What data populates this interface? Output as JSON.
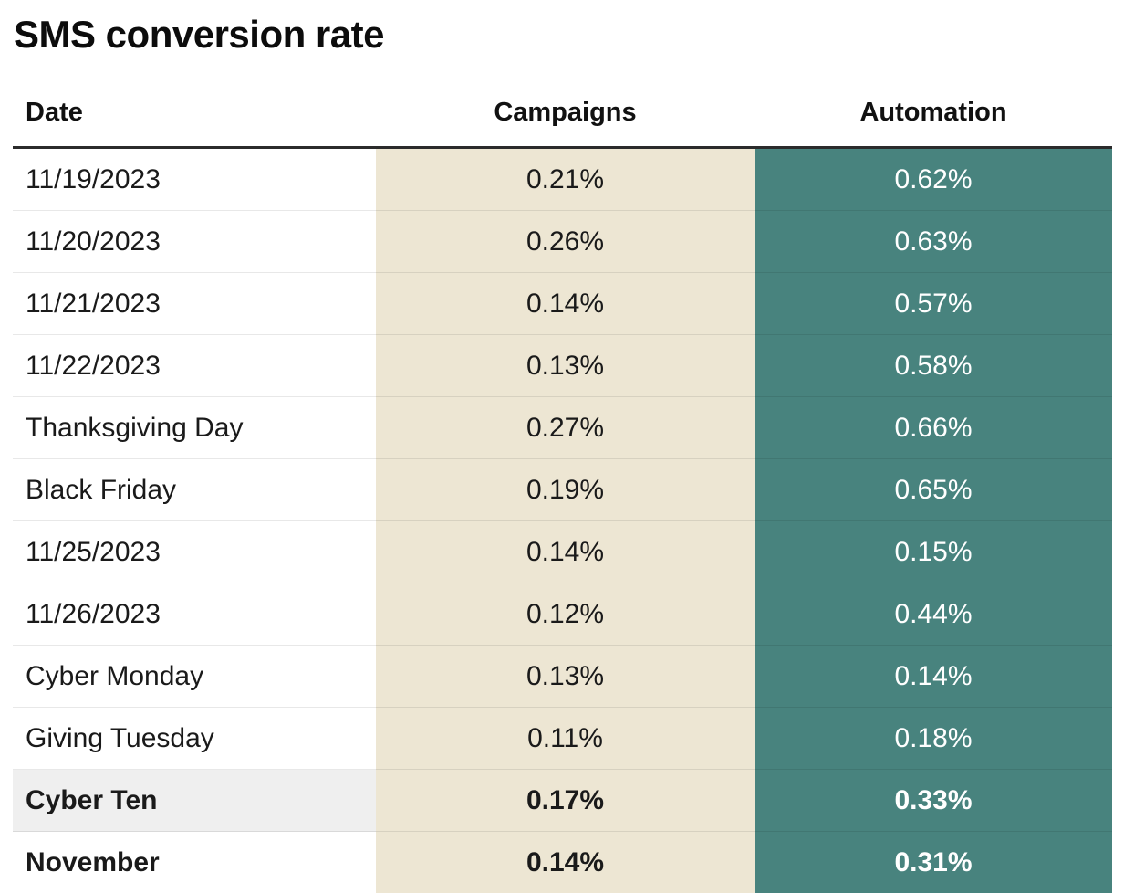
{
  "title": "SMS conversion rate",
  "colors": {
    "campaigns_bg": "#EDE6D3",
    "automation_bg": "#48837E",
    "automation_text": "#FFFFFF",
    "highlight_bg": "#EFEFEF",
    "header_rule": "#2B2B2B",
    "body_text": "#1B1B1B"
  },
  "table": {
    "columns": [
      "Date",
      "Campaigns",
      "Automation"
    ],
    "rows": [
      {
        "date": "11/19/2023",
        "campaigns": "0.21%",
        "automation": "0.62%"
      },
      {
        "date": "11/20/2023",
        "campaigns": "0.26%",
        "automation": "0.63%"
      },
      {
        "date": "11/21/2023",
        "campaigns": "0.14%",
        "automation": "0.57%"
      },
      {
        "date": "11/22/2023",
        "campaigns": "0.13%",
        "automation": "0.58%"
      },
      {
        "date": "Thanksgiving Day",
        "campaigns": "0.27%",
        "automation": "0.66%"
      },
      {
        "date": "Black Friday",
        "campaigns": "0.19%",
        "automation": "0.65%"
      },
      {
        "date": "11/25/2023",
        "campaigns": "0.14%",
        "automation": "0.15%"
      },
      {
        "date": "11/26/2023",
        "campaigns": "0.12%",
        "automation": "0.44%"
      },
      {
        "date": "Cyber Monday",
        "campaigns": "0.13%",
        "automation": "0.14%"
      },
      {
        "date": "Giving Tuesday",
        "campaigns": "0.11%",
        "automation": "0.18%"
      },
      {
        "date": "Cyber Ten",
        "campaigns": "0.17%",
        "automation": "0.33%"
      },
      {
        "date": "November",
        "campaigns": "0.14%",
        "automation": "0.31%"
      }
    ]
  },
  "chart_data": {
    "type": "table",
    "title": "SMS conversion rate",
    "categories": [
      "11/19/2023",
      "11/20/2023",
      "11/21/2023",
      "11/22/2023",
      "Thanksgiving Day",
      "Black Friday",
      "11/25/2023",
      "11/26/2023",
      "Cyber Monday",
      "Giving Tuesday",
      "Cyber Ten",
      "November"
    ],
    "series": [
      {
        "name": "Campaigns",
        "unit": "%",
        "values": [
          0.21,
          0.26,
          0.14,
          0.13,
          0.27,
          0.19,
          0.14,
          0.12,
          0.13,
          0.11,
          0.17,
          0.14
        ]
      },
      {
        "name": "Automation",
        "unit": "%",
        "values": [
          0.62,
          0.63,
          0.57,
          0.58,
          0.66,
          0.65,
          0.15,
          0.44,
          0.14,
          0.18,
          0.33,
          0.31
        ]
      }
    ],
    "layout_hints": {
      "summary_rows_bold": [
        "Cyber Ten",
        "November"
      ],
      "highlighted_row": "Cyber Ten",
      "campaigns_column_bg": "#EDE6D3",
      "automation_column_bg": "#48837E"
    }
  }
}
